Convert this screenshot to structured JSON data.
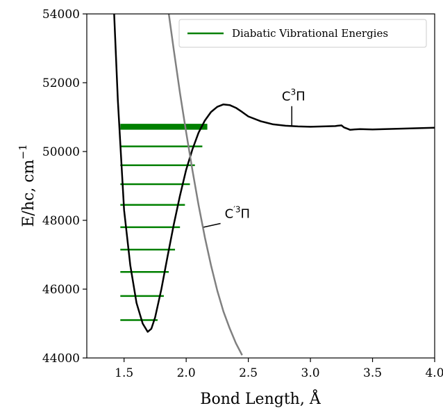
{
  "chart_data": {
    "type": "line",
    "xlabel": "Bond Length, Å",
    "ylabel": "E/hc, cm",
    "ylabel_superscript": "−1",
    "xlim": [
      1.2,
      4.0
    ],
    "ylim": [
      44000,
      54000
    ],
    "xticks": [
      1.5,
      2.0,
      2.5,
      3.0,
      3.5,
      4.0
    ],
    "xtick_labels": [
      "1.5",
      "2.0",
      "2.5",
      "3.0",
      "3.5",
      "4.0"
    ],
    "yticks": [
      44000,
      46000,
      48000,
      50000,
      52000,
      54000
    ],
    "ytick_labels": [
      "44000",
      "46000",
      "48000",
      "50000",
      "52000",
      "54000"
    ],
    "grid": false,
    "legend": {
      "placement": "top-right",
      "entries": [
        {
          "label": "Diabatic Vibrational Energies",
          "color": "#008000"
        }
      ]
    },
    "series": [
      {
        "id": "c3pi",
        "color": "#000000",
        "x": [
          1.42,
          1.45,
          1.5,
          1.55,
          1.6,
          1.65,
          1.69,
          1.72,
          1.75,
          1.8,
          1.85,
          1.9,
          1.95,
          2.0,
          2.05,
          2.1,
          2.15,
          2.2,
          2.25,
          2.3,
          2.35,
          2.4,
          2.45,
          2.5,
          2.6,
          2.7,
          2.8,
          2.9,
          3.0,
          3.1,
          3.2,
          3.22,
          3.25,
          3.27,
          3.3,
          3.32,
          3.35,
          3.4,
          3.5,
          3.6,
          3.7,
          3.8,
          3.9,
          4.0
        ],
        "y": [
          54000,
          51500,
          48300,
          46700,
          45600,
          45000,
          44760,
          44850,
          45180,
          46000,
          46950,
          47880,
          48720,
          49470,
          50060,
          50550,
          50900,
          51150,
          51300,
          51370,
          51350,
          51270,
          51150,
          51020,
          50880,
          50790,
          50750,
          50730,
          50720,
          50730,
          50740,
          50750,
          50760,
          50700,
          50660,
          50630,
          50640,
          50650,
          50640,
          50650,
          50660,
          50670,
          50680,
          50690
        ]
      },
      {
        "id": "c-prime-3pi",
        "color": "#808080",
        "x": [
          1.86,
          1.9,
          1.95,
          2.0,
          2.05,
          2.1,
          2.15,
          2.2,
          2.25,
          2.3,
          2.35,
          2.4,
          2.45
        ],
        "y": [
          54000,
          52950,
          51700,
          50560,
          49460,
          48440,
          47510,
          46690,
          45960,
          45350,
          44860,
          44430,
          44080
        ]
      }
    ],
    "vibrational_levels": {
      "color": "#008000",
      "x_start": 1.47,
      "levels": [
        {
          "energy": 45100,
          "x_end": 1.77
        },
        {
          "energy": 45800,
          "x_end": 1.82
        },
        {
          "energy": 46500,
          "x_end": 1.86
        },
        {
          "energy": 47150,
          "x_end": 1.91
        },
        {
          "energy": 47800,
          "x_end": 1.95
        },
        {
          "energy": 48450,
          "x_end": 1.99
        },
        {
          "energy": 49050,
          "x_end": 2.03
        },
        {
          "energy": 49600,
          "x_end": 2.07
        },
        {
          "energy": 50150,
          "x_end": 2.13
        },
        {
          "energy": 50660,
          "x_end": 2.17
        },
        {
          "energy": 50700,
          "x_end": 2.17
        },
        {
          "energy": 50740,
          "x_end": 2.17
        },
        {
          "energy": 50780,
          "x_end": 2.17
        }
      ]
    },
    "annotations": [
      {
        "id": "c3pi",
        "base": "C",
        "sup": "3",
        "tail": "Π",
        "anchor_x": 2.85,
        "anchor_y": 50750,
        "text_x": 2.77,
        "text_y": 51480
      },
      {
        "id": "c-prime-3pi",
        "base": "C",
        "sup": "′3",
        "tail": "Π",
        "anchor_x": 2.14,
        "anchor_y": 47800,
        "text_x": 2.31,
        "text_y": 48070
      }
    ]
  }
}
